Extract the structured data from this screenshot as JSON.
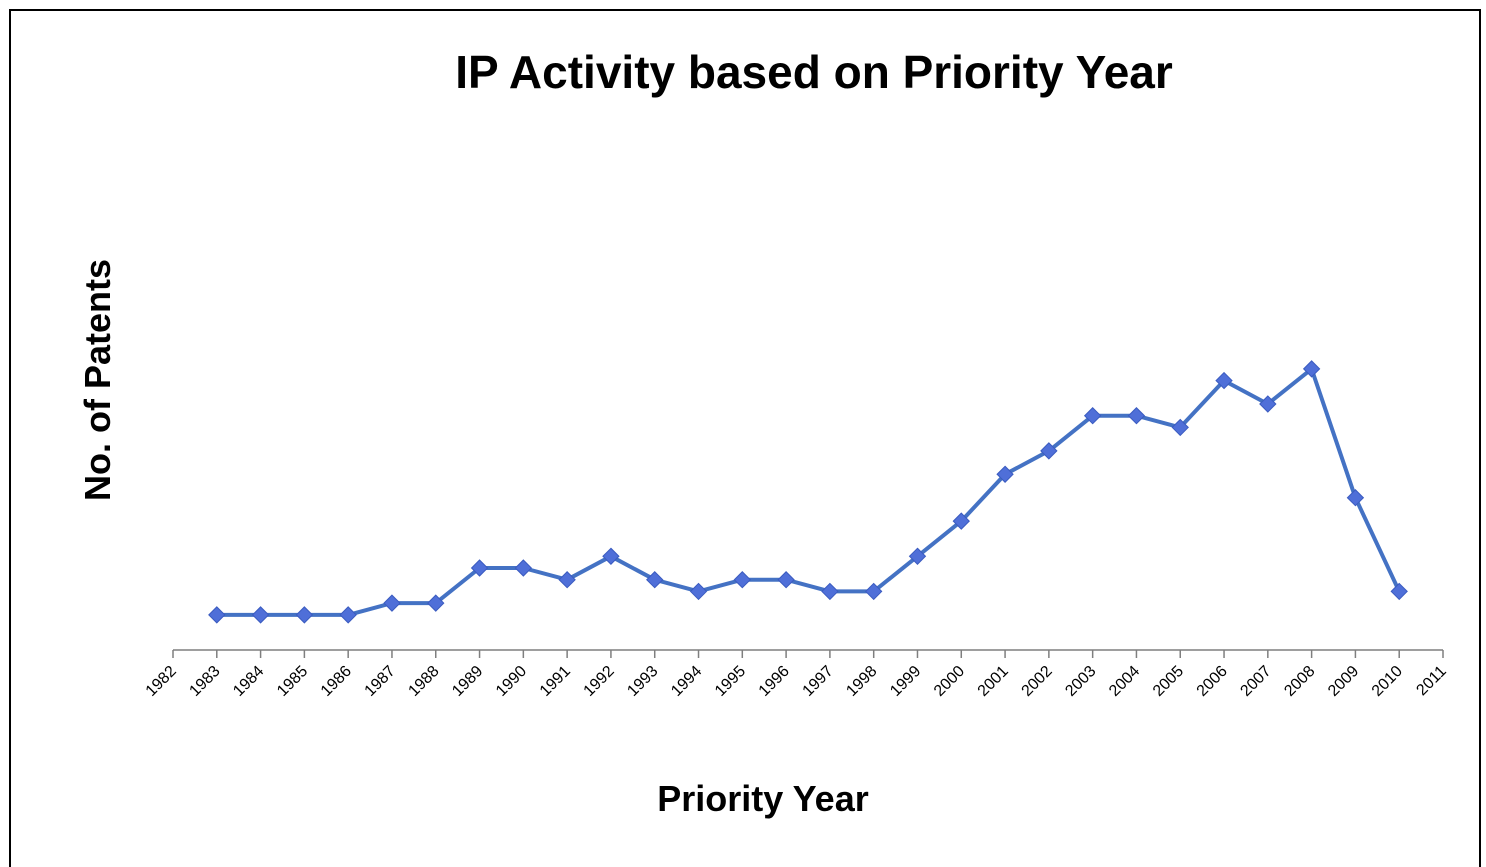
{
  "chart_data": {
    "type": "line",
    "title": "IP Activity based on Priority Year",
    "xlabel": "Priority Year",
    "ylabel": "No. of Patents",
    "x_ticks": [
      "1982",
      "1983",
      "1984",
      "1985",
      "1986",
      "1987",
      "1988",
      "1989",
      "1990",
      "1991",
      "1992",
      "1993",
      "1994",
      "1995",
      "1996",
      "1997",
      "1998",
      "1999",
      "2000",
      "2001",
      "2002",
      "2003",
      "2004",
      "2005",
      "2006",
      "2007",
      "2008",
      "2009",
      "2010",
      "2011"
    ],
    "x": [
      1983,
      1984,
      1985,
      1986,
      1987,
      1988,
      1989,
      1990,
      1991,
      1992,
      1993,
      1994,
      1995,
      1996,
      1997,
      1998,
      1999,
      2000,
      2001,
      2002,
      2003,
      2004,
      2005,
      2006,
      2007,
      2008,
      2009,
      2010
    ],
    "series": [
      {
        "values": [
          3,
          3,
          3,
          3,
          4,
          4,
          7,
          7,
          6,
          8,
          6,
          5,
          6,
          6,
          5,
          5,
          8,
          11,
          15,
          17,
          20,
          20,
          19,
          23,
          21,
          24,
          13,
          5
        ]
      }
    ],
    "xlim": [
      1982,
      2011
    ],
    "ylim": [
      0,
      35
    ],
    "y_tick_labels_shown": false,
    "grid": false,
    "legend": "none",
    "marker": "diamond",
    "line_color": "#4472C4",
    "marker_color": "#4F6FD8"
  }
}
